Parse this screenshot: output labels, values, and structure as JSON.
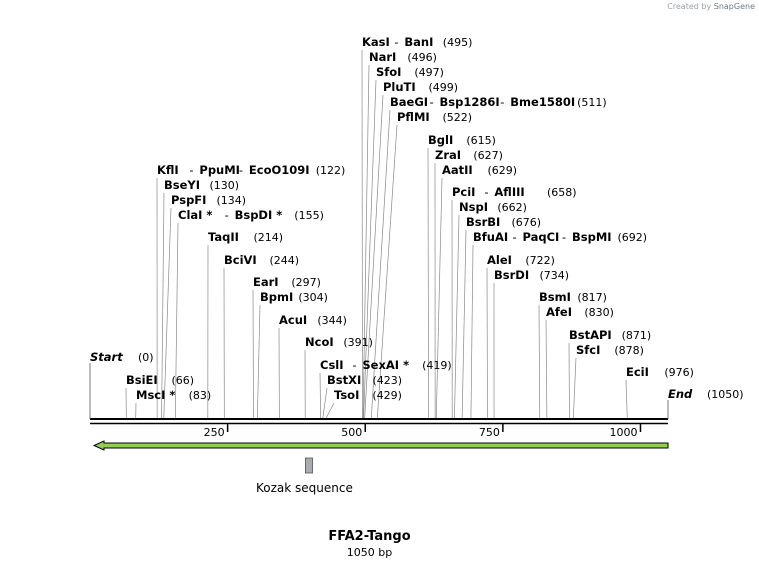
{
  "credit": {
    "prefix": "Created by",
    "brand": "SnapGene"
  },
  "title": "FFA2-Tango",
  "length_label": "1050 bp",
  "sequence_length": 1050,
  "axis_ticks": [
    {
      "value": 250,
      "label": "250"
    },
    {
      "value": 500,
      "label": "500"
    },
    {
      "value": 750,
      "label": "750"
    },
    {
      "value": 1000,
      "label": "1000"
    }
  ],
  "start_label": {
    "name": "Start",
    "pos": "(0)"
  },
  "end_label": {
    "name": "End",
    "pos": "(1050)"
  },
  "features": [
    {
      "name": "Kozak sequence",
      "start": 394,
      "end": 407,
      "color": "#a8acb2"
    }
  ],
  "orf_color": "#8fd14f",
  "sites": [
    {
      "names": [
        "KasI",
        "BanI"
      ],
      "pos": 495
    },
    {
      "names": [
        "NarI"
      ],
      "pos": 496
    },
    {
      "names": [
        "SfoI"
      ],
      "pos": 497
    },
    {
      "names": [
        "PluTI"
      ],
      "pos": 499
    },
    {
      "names": [
        "BaeGI",
        "Bsp1286I",
        "Bme1580I"
      ],
      "pos": 511
    },
    {
      "names": [
        "PflMI"
      ],
      "pos": 522
    },
    {
      "names": [
        "BglI"
      ],
      "pos": 615
    },
    {
      "names": [
        "ZraI"
      ],
      "pos": 627
    },
    {
      "names": [
        "AatII"
      ],
      "pos": 629
    },
    {
      "names": [
        "PciI",
        "AflIII"
      ],
      "pos": 658
    },
    {
      "names": [
        "NspI"
      ],
      "pos": 662
    },
    {
      "names": [
        "BsrBI"
      ],
      "pos": 676
    },
    {
      "names": [
        "BfuAI",
        "PaqCI",
        "BspMI"
      ],
      "pos": 692
    },
    {
      "names": [
        "AleI"
      ],
      "pos": 722
    },
    {
      "names": [
        "BsrDI"
      ],
      "pos": 734
    },
    {
      "names": [
        "BsmI"
      ],
      "pos": 817
    },
    {
      "names": [
        "AfeI"
      ],
      "pos": 830
    },
    {
      "names": [
        "BstAPI"
      ],
      "pos": 871
    },
    {
      "names": [
        "SfcI"
      ],
      "pos": 878
    },
    {
      "names": [
        "EciI"
      ],
      "pos": 976
    },
    {
      "names": [
        "KflI",
        "PpuMI",
        "EcoO109I"
      ],
      "pos": 122
    },
    {
      "names": [
        "BseYI"
      ],
      "pos": 130
    },
    {
      "names": [
        "PspFI"
      ],
      "pos": 134
    },
    {
      "names": [
        "ClaI *",
        "BspDI *"
      ],
      "pos": 155
    },
    {
      "names": [
        "TaqII"
      ],
      "pos": 214
    },
    {
      "names": [
        "BciVI"
      ],
      "pos": 244
    },
    {
      "names": [
        "EarI"
      ],
      "pos": 297
    },
    {
      "names": [
        "BpmI"
      ],
      "pos": 304
    },
    {
      "names": [
        "AcuI"
      ],
      "pos": 344
    },
    {
      "names": [
        "NcoI"
      ],
      "pos": 391
    },
    {
      "names": [
        "CslI",
        "SexAI *"
      ],
      "pos": 419
    },
    {
      "names": [
        "BstXI"
      ],
      "pos": 423
    },
    {
      "names": [
        "TsoI"
      ],
      "pos": 429
    },
    {
      "names": [
        "BsiEI"
      ],
      "pos": 66
    },
    {
      "names": [
        "MscI *"
      ],
      "pos": 83
    }
  ]
}
